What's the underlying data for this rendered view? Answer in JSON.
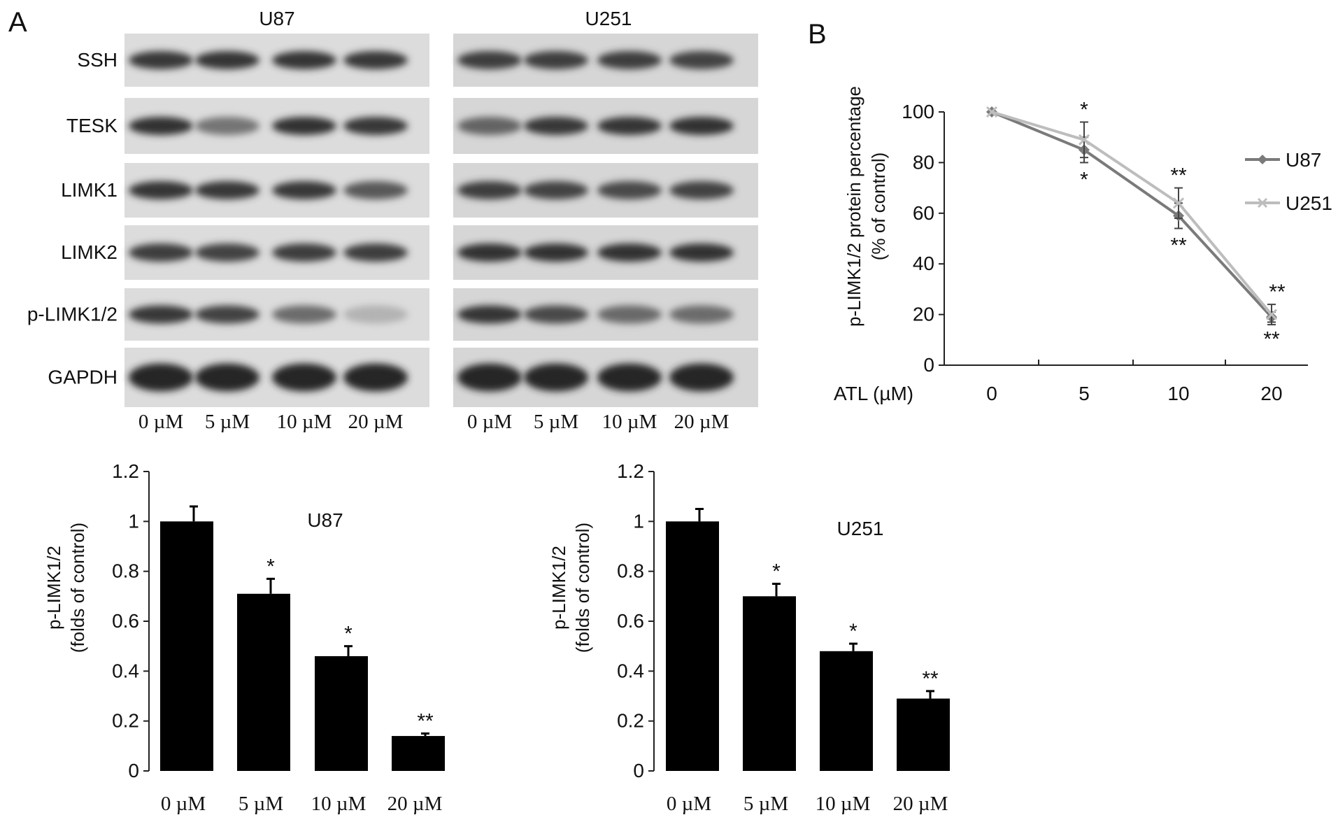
{
  "panels": {
    "a": "A",
    "b": "B"
  },
  "blot": {
    "cell_lines": [
      "U87",
      "U251"
    ],
    "proteins": [
      "SSH",
      "TESK",
      "LIMK1",
      "LIMK2",
      "p-LIMK1/2",
      "GAPDH"
    ],
    "lane_labels": [
      "0 µM",
      "5 µM",
      "10 µM",
      "20 µM"
    ],
    "band_intensity": {
      "U87": [
        [
          0.9,
          0.92,
          0.92,
          0.9
        ],
        [
          0.95,
          0.55,
          0.95,
          0.9
        ],
        [
          0.92,
          0.9,
          0.9,
          0.72
        ],
        [
          0.88,
          0.85,
          0.88,
          0.88
        ],
        [
          0.9,
          0.85,
          0.6,
          0.18
        ],
        [
          1.0,
          1.0,
          1.0,
          1.0
        ]
      ],
      "U251": [
        [
          0.88,
          0.88,
          0.88,
          0.85
        ],
        [
          0.65,
          0.9,
          0.92,
          0.95
        ],
        [
          0.88,
          0.85,
          0.8,
          0.85
        ],
        [
          0.95,
          0.95,
          0.95,
          0.95
        ],
        [
          0.92,
          0.8,
          0.62,
          0.6
        ],
        [
          1.0,
          1.0,
          1.0,
          1.0
        ]
      ]
    }
  },
  "chart_data": [
    {
      "type": "line",
      "panel": "B",
      "xlabel": "ATL (µM)",
      "ylabel": "p-LIMK1/2 protein percentage",
      "ylabel2": "(% of control)",
      "categories": [
        "0",
        "5",
        "10",
        "20"
      ],
      "ylim": [
        0,
        100
      ],
      "yticks": [
        "0",
        "20",
        "40",
        "60",
        "80",
        "100"
      ],
      "legend_position": "right",
      "series": [
        {
          "name": "U87",
          "marker": "diamond",
          "color": "#7a7a7a",
          "values": [
            100,
            85,
            59,
            19
          ],
          "errors": [
            0,
            5,
            5,
            2
          ],
          "annotations": [
            "",
            "*",
            "**",
            "**"
          ]
        },
        {
          "name": "U251",
          "marker": "x",
          "color": "#bdbdbd",
          "values": [
            100,
            89,
            64,
            20
          ],
          "errors": [
            0,
            7,
            6,
            4
          ],
          "annotations": [
            "",
            "*",
            "**",
            "**"
          ]
        }
      ]
    },
    {
      "type": "bar",
      "title": "U87",
      "ylabel": "p-LIMK1/2",
      "ylabel2": "(folds of control)",
      "categories": [
        "0 µM",
        "5 µM",
        "10 µM",
        "20 µM"
      ],
      "values": [
        1.0,
        0.71,
        0.46,
        0.14
      ],
      "errors": [
        0.06,
        0.06,
        0.04,
        0.01
      ],
      "annotations": [
        "",
        "*",
        "*",
        "**"
      ],
      "ylim": [
        0,
        1.2
      ],
      "yticks": [
        "0",
        "0.2",
        "0.4",
        "0.6",
        "0.8",
        "1",
        "1.2"
      ],
      "color": "#000000"
    },
    {
      "type": "bar",
      "title": "U251",
      "ylabel": "p-LIMK1/2",
      "ylabel2": "(folds of control)",
      "categories": [
        "0 µM",
        "5 µM",
        "10 µM",
        "20 µM"
      ],
      "values": [
        1.0,
        0.7,
        0.48,
        0.29
      ],
      "errors": [
        0.05,
        0.05,
        0.03,
        0.03
      ],
      "annotations": [
        "",
        "*",
        "*",
        "**"
      ],
      "ylim": [
        0,
        1.2
      ],
      "yticks": [
        "0",
        "0.2",
        "0.4",
        "0.6",
        "0.8",
        "1",
        "1.2"
      ],
      "color": "#000000"
    }
  ]
}
